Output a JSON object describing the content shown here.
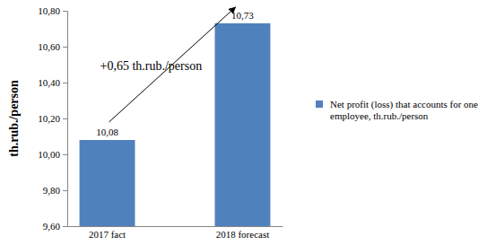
{
  "chart_data": {
    "type": "bar",
    "y_label": "th.rub./person",
    "annotation": "+0,65 th.rub./person",
    "categories": [
      "2017 fact",
      "2018 forecast"
    ],
    "series": [
      {
        "name": "Net profit (loss) that accounts for one employee, th.rub./person",
        "color": "#4f81bd",
        "values": [
          10.08,
          10.73
        ],
        "value_labels": [
          "10,08",
          "10,73"
        ]
      }
    ],
    "ylim": [
      9.6,
      10.8
    ],
    "yticks": [
      {
        "value": 9.6,
        "label": "9,60"
      },
      {
        "value": 9.8,
        "label": "9,80"
      },
      {
        "value": 10.0,
        "label": "10,00"
      },
      {
        "value": 10.2,
        "label": "10,20"
      },
      {
        "value": 10.4,
        "label": "10,40"
      },
      {
        "value": 10.6,
        "label": "10,60"
      },
      {
        "value": 10.8,
        "label": "10,80"
      }
    ],
    "grid": false,
    "legend": "right",
    "data_labels": true
  }
}
